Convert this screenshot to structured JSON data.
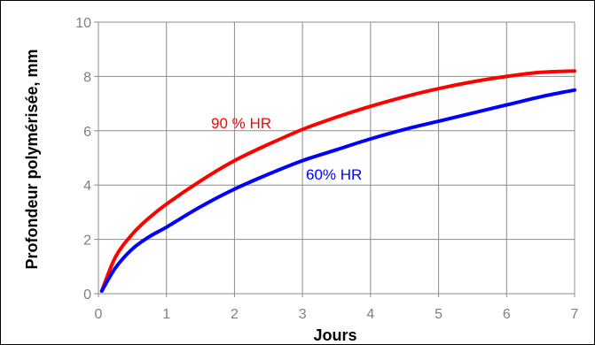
{
  "chart_data": {
    "type": "line",
    "title": "",
    "xlabel": "Jours",
    "ylabel": "Profondeur polymérisée, mm",
    "xlim": [
      0,
      7
    ],
    "ylim": [
      0,
      10
    ],
    "x_ticks": [
      "0",
      "1",
      "2",
      "3",
      "4",
      "5",
      "6",
      "7"
    ],
    "y_ticks": [
      "0",
      "2",
      "4",
      "6",
      "8",
      "10"
    ],
    "grid": true,
    "legend": "none",
    "series": [
      {
        "name": "90 % HR",
        "color": "#ff0000",
        "x": [
          0.05,
          0.25,
          0.5,
          0.75,
          1,
          1.5,
          2,
          2.5,
          3,
          3.5,
          4,
          4.5,
          5,
          5.5,
          6,
          6.5,
          7
        ],
        "y": [
          0.1,
          1.35,
          2.2,
          2.8,
          3.3,
          4.15,
          4.9,
          5.5,
          6.05,
          6.5,
          6.9,
          7.25,
          7.55,
          7.8,
          8.0,
          8.15,
          8.2
        ]
      },
      {
        "name": "60% HR",
        "color": "#0000ff",
        "x": [
          0.05,
          0.25,
          0.5,
          0.75,
          1,
          1.5,
          2,
          2.5,
          3,
          3.5,
          4,
          4.5,
          5,
          5.5,
          6,
          6.5,
          7
        ],
        "y": [
          0.1,
          0.95,
          1.65,
          2.1,
          2.45,
          3.2,
          3.85,
          4.4,
          4.9,
          5.3,
          5.7,
          6.05,
          6.35,
          6.65,
          6.95,
          7.25,
          7.5
        ]
      }
    ]
  }
}
